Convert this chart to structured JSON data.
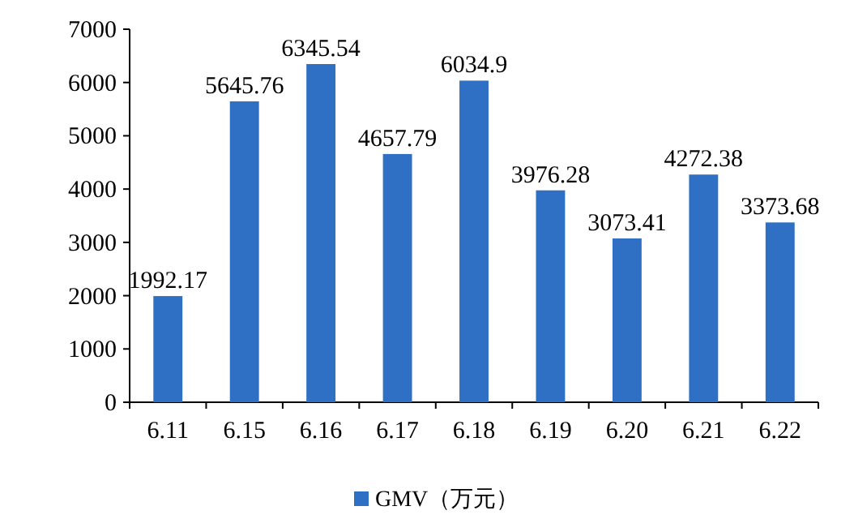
{
  "chart_data": {
    "type": "bar",
    "categories": [
      "6.11",
      "6.15",
      "6.16",
      "6.17",
      "6.18",
      "6.19",
      "6.20",
      "6.21",
      "6.22"
    ],
    "series": [
      {
        "name": "GMV（万元）",
        "color": "#2f6fc4",
        "values": [
          1992.17,
          5645.76,
          6345.54,
          4657.79,
          6034.9,
          3976.28,
          3073.41,
          4272.38,
          3373.68
        ]
      }
    ],
    "ylim": [
      0,
      7000
    ],
    "yticks": [
      0,
      1000,
      2000,
      3000,
      4000,
      5000,
      6000,
      7000
    ],
    "data_labels": true,
    "legend": "bottom",
    "grid": false
  }
}
